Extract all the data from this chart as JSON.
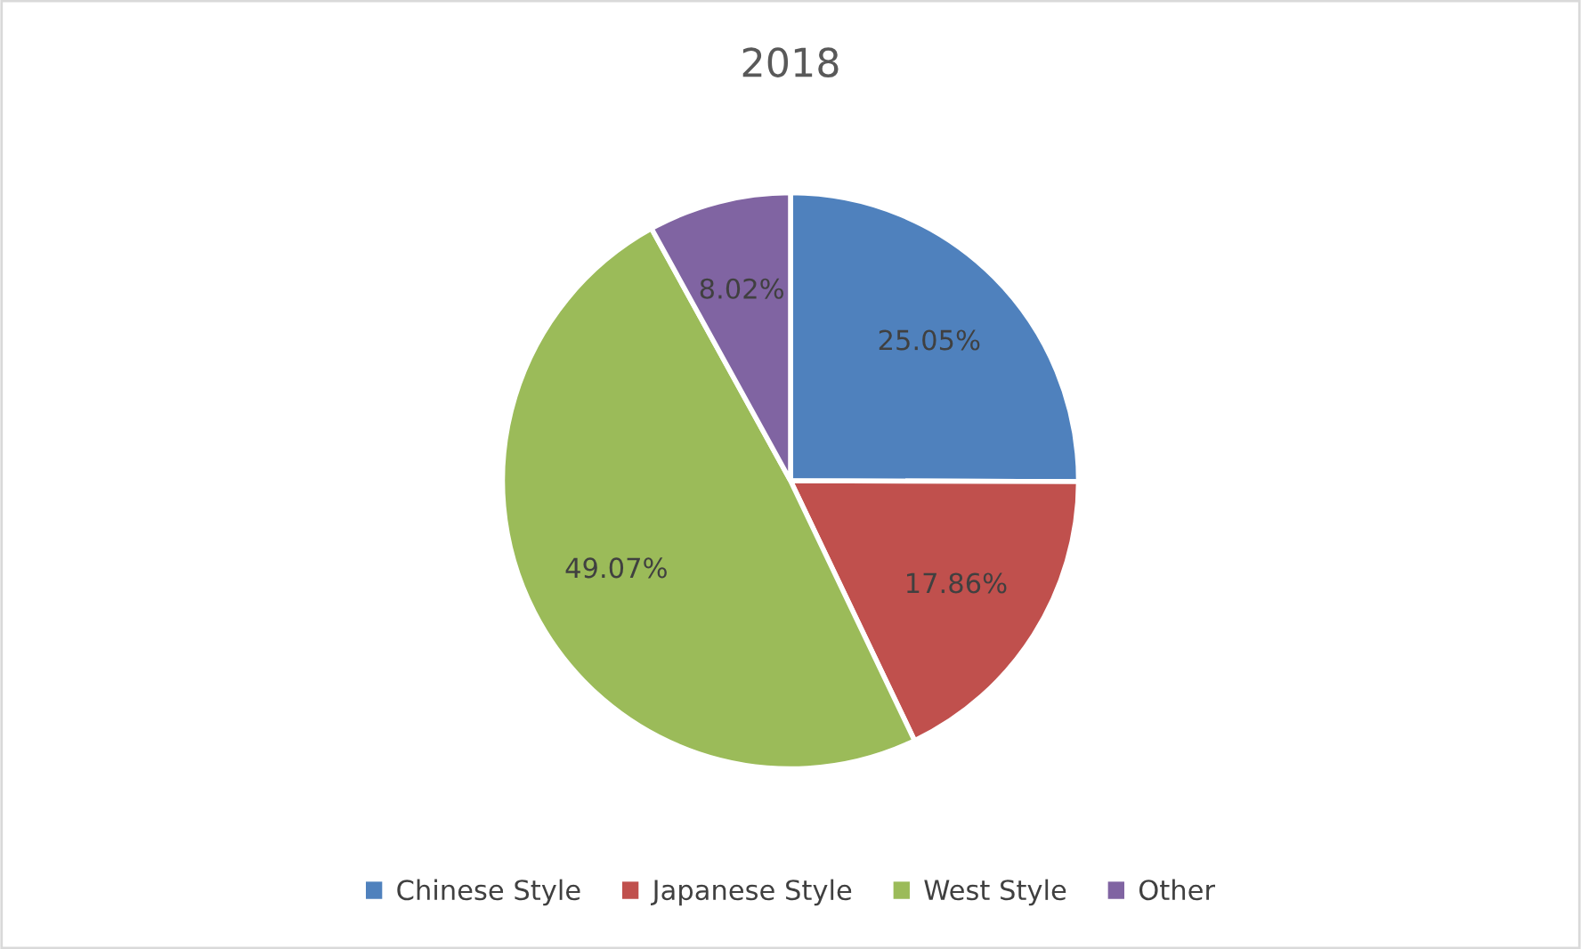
{
  "chart_data": {
    "type": "pie",
    "title": "2018",
    "categories": [
      "Chinese Style",
      "Japanese Style",
      "West Style",
      "Other"
    ],
    "values": [
      25.05,
      17.86,
      49.07,
      8.02
    ],
    "colors": [
      "#4f81bd",
      "#c0504d",
      "#9bbb59",
      "#8064a2"
    ],
    "value_labels": [
      "25.05%",
      "17.86%",
      "49.07%",
      "8.02%"
    ],
    "legend": "bottom"
  }
}
